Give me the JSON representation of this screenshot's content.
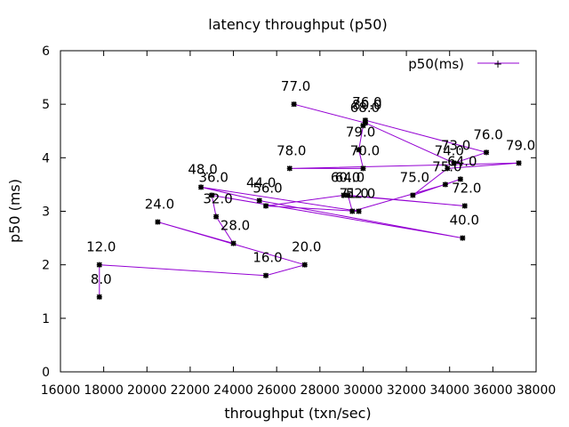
{
  "chart_data": {
    "type": "scatter",
    "title": "latency throughput (p50)",
    "xlabel": "throughput (txn/sec)",
    "ylabel": "p50 (ms)",
    "xlim": [
      16000,
      38000
    ],
    "ylim": [
      0,
      6
    ],
    "xticks": [
      "16000",
      "18000",
      "20000",
      "22000",
      "24000",
      "26000",
      "28000",
      "30000",
      "32000",
      "34000",
      "36000",
      "38000"
    ],
    "yticks": [
      "0",
      "1",
      "2",
      "3",
      "4",
      "5",
      "6"
    ],
    "grid": false,
    "legend": "top-right",
    "series": [
      {
        "name": "p50(ms)",
        "color": "#9400d3",
        "points": [
          {
            "x": 17800,
            "y": 1.4,
            "label": "8.0"
          },
          {
            "x": 17800,
            "y": 2.0,
            "label": "12.0"
          },
          {
            "x": 25500,
            "y": 1.8,
            "label": "16.0"
          },
          {
            "x": 27300,
            "y": 2.0,
            "label": "20.0"
          },
          {
            "x": 20500,
            "y": 2.8,
            "label": "24.0"
          },
          {
            "x": 24000,
            "y": 2.4,
            "label": "28.0"
          },
          {
            "x": 23200,
            "y": 2.9,
            "label": "32.0"
          },
          {
            "x": 23000,
            "y": 3.3,
            "label": "36.0"
          },
          {
            "x": 34600,
            "y": 2.5,
            "label": "40.0"
          },
          {
            "x": 25200,
            "y": 3.2,
            "label": "44.0"
          },
          {
            "x": 22500,
            "y": 3.45,
            "label": "48.0"
          },
          {
            "x": 29800,
            "y": 3.0,
            "label": "52.0"
          },
          {
            "x": 25500,
            "y": 3.1,
            "label": "56.0"
          },
          {
            "x": 29100,
            "y": 3.3,
            "label": "60.0"
          },
          {
            "x": 34700,
            "y": 3.1,
            "label": "72.0"
          },
          {
            "x": 29300,
            "y": 3.3,
            "label": "64.0"
          },
          {
            "x": 29500,
            "y": 3.0,
            "label": "71.0"
          },
          {
            "x": 33800,
            "y": 3.5,
            "label": "75.0"
          },
          {
            "x": 34500,
            "y": 3.6,
            "label": "64.0"
          },
          {
            "x": 32300,
            "y": 3.3,
            "label": "75.0"
          },
          {
            "x": 33900,
            "y": 3.8,
            "label": "74.0"
          },
          {
            "x": 37200,
            "y": 3.9,
            "label": "79.0"
          },
          {
            "x": 26600,
            "y": 3.8,
            "label": "78.0"
          },
          {
            "x": 30000,
            "y": 3.8,
            "label": "70.0"
          },
          {
            "x": 29800,
            "y": 4.15,
            "label": "79.0"
          },
          {
            "x": 30000,
            "y": 4.6,
            "label": "68.0"
          },
          {
            "x": 30100,
            "y": 4.7,
            "label": "76.0"
          },
          {
            "x": 35700,
            "y": 4.1,
            "label": "76.0"
          },
          {
            "x": 34200,
            "y": 3.9,
            "label": "73.0"
          },
          {
            "x": 30100,
            "y": 4.65,
            "label": "80.0"
          },
          {
            "x": 26800,
            "y": 5.0,
            "label": "77.0"
          }
        ]
      }
    ]
  }
}
